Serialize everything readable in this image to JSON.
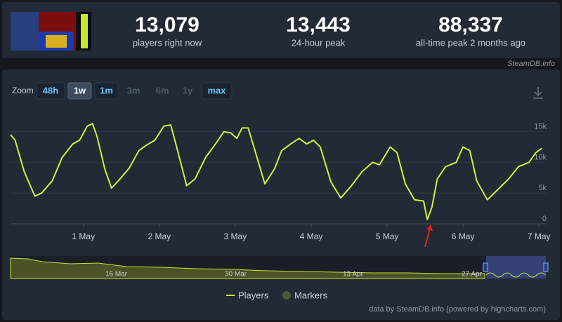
{
  "header": {
    "stats": [
      {
        "value": "13,079",
        "label": "players right now"
      },
      {
        "value": "13,443",
        "label": "24-hour peak"
      },
      {
        "value": "88,337",
        "label": "all-time peak 2 months ago"
      }
    ],
    "source": "SteamDB.info"
  },
  "zoom": {
    "label": "Zoom",
    "buttons": [
      "48h",
      "1w",
      "1m",
      "3m",
      "6m",
      "1y",
      "max"
    ]
  },
  "chart_data": {
    "type": "line",
    "x": [
      0.04,
      0.1,
      0.22,
      0.36,
      0.45,
      0.59,
      0.72,
      0.86,
      0.95,
      1.05,
      1.12,
      1.18,
      1.28,
      1.37,
      1.46,
      1.6,
      1.73,
      1.83,
      1.94,
      2.06,
      2.15,
      2.24,
      2.36,
      2.47,
      2.61,
      2.74,
      2.85,
      2.94,
      3.02,
      3.09,
      3.17,
      3.26,
      3.39,
      3.52,
      3.61,
      3.73,
      3.84,
      3.94,
      4.03,
      4.12,
      4.26,
      4.39,
      4.53,
      4.67,
      4.81,
      4.9,
      5.04,
      5.13,
      5.24,
      5.36,
      5.48,
      5.53,
      5.59,
      5.66,
      5.77,
      5.91,
      6.0,
      6.09,
      6.18,
      6.32,
      6.46,
      6.6,
      6.73,
      6.87,
      6.96,
      7.04
    ],
    "series": [
      {
        "name": "Players",
        "color": "#d4ee3e",
        "values": [
          14500,
          13600,
          8500,
          4500,
          5000,
          7000,
          10800,
          13000,
          13600,
          15900,
          16300,
          14200,
          9000,
          5800,
          7000,
          9000,
          11900,
          12800,
          13600,
          15900,
          16100,
          11900,
          6200,
          7300,
          10800,
          13000,
          15000,
          14800,
          13900,
          15600,
          15600,
          11900,
          6500,
          9000,
          11900,
          13000,
          13900,
          13000,
          13600,
          12500,
          6800,
          4200,
          6200,
          8500,
          10000,
          9600,
          12500,
          11600,
          6500,
          3900,
          3700,
          700,
          2700,
          7300,
          9300,
          10000,
          12500,
          11900,
          7000,
          3900,
          5600,
          7300,
          9300,
          10000,
          11600,
          12300
        ]
      }
    ],
    "xlim": [
      0.04,
      7.1
    ],
    "xticks": [
      {
        "value": 1,
        "label": "1 May"
      },
      {
        "value": 2,
        "label": "2 May"
      },
      {
        "value": 3,
        "label": "3 May"
      },
      {
        "value": 4,
        "label": "4 May"
      },
      {
        "value": 5,
        "label": "5 May"
      },
      {
        "value": 6,
        "label": "6 May"
      },
      {
        "value": 7,
        "label": "7 May"
      }
    ],
    "ylim": [
      0,
      19300
    ],
    "yticks": [
      0,
      {
        "value": 5000,
        "label": "5k"
      },
      {
        "value": 10000,
        "label": "10k"
      },
      {
        "value": 15000,
        "label": "15k"
      }
    ],
    "grid": true,
    "legend": {
      "entries": [
        "Players",
        "Markers"
      ]
    }
  },
  "navigator": {
    "labels": [
      "16 Mar",
      "30 Mar",
      "13 Apr",
      "27 Apr"
    ]
  },
  "credits": "data by SteamDB.info (powered by highcharts.com)"
}
